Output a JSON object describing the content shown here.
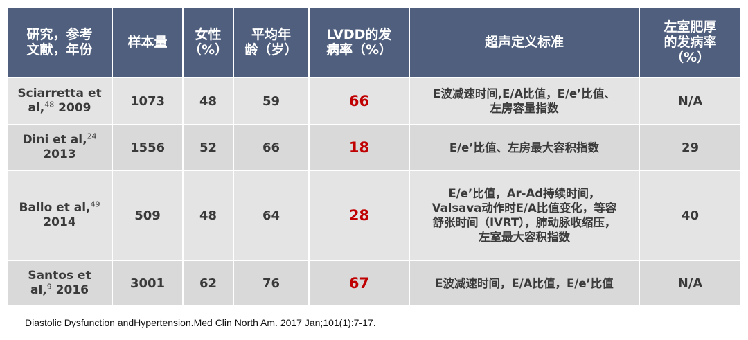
{
  "table": {
    "headers": {
      "study": [
        "研究，参考",
        "文献，年份"
      ],
      "sample": "样本量",
      "female": [
        "女性",
        "（%）"
      ],
      "age": [
        "平均年",
        "龄（岁）"
      ],
      "lvdd": [
        "LVDD的发",
        "病率（%）"
      ],
      "criteria": "超声定义标准",
      "lvh": [
        "左室肥厚",
        "的发病率",
        "（%）"
      ]
    },
    "rows": [
      {
        "study_l1": "Sciarretta et",
        "study_l2a": "al,",
        "ref": "48",
        "study_l2b": " 2009",
        "sample": "1073",
        "female": "48",
        "age": "59",
        "lvdd": "66",
        "criteria": [
          "E波减速时间,E/A比值，E/e’比值、",
          "左房容量指数"
        ],
        "lvh": "N/A"
      },
      {
        "study_l1a": "Dini et al,",
        "ref": "24",
        "study_l2": "2013",
        "sample": "1556",
        "female": "52",
        "age": "66",
        "lvdd": "18",
        "criteria": [
          "E/e’比值、左房最大容积指数"
        ],
        "lvh": "29"
      },
      {
        "study_l1a": "Ballo et al,",
        "ref": "49",
        "study_l2": "2014",
        "sample": "509",
        "female": "48",
        "age": "64",
        "lvdd": "28",
        "criteria": [
          "E/e’比值，Ar-Ad持续时间，",
          "Valsava动作时E/A比值变化，等容",
          "舒张时间（IVRT），肺动脉收缩压，",
          "左室最大容积指数"
        ],
        "lvh": "40"
      },
      {
        "study_l1": "Santos et",
        "study_l2a": "al,",
        "ref": "9",
        "study_l2b": " 2016",
        "sample": "3001",
        "female": "62",
        "age": "76",
        "lvdd": "67",
        "criteria": [
          "E波减速时间，E/A比值，E/e’比值"
        ],
        "lvh": "N/A"
      }
    ]
  },
  "source": "Diastolic Dysfunction andHypertension.Med Clin North Am. 2017 Jan;101(1):7-17.",
  "colors": {
    "header_bg": "#4f5f7d",
    "row_bg": "#e4e4e4",
    "row_alt_bg": "#d9d9d9",
    "highlight": "#c00000"
  }
}
